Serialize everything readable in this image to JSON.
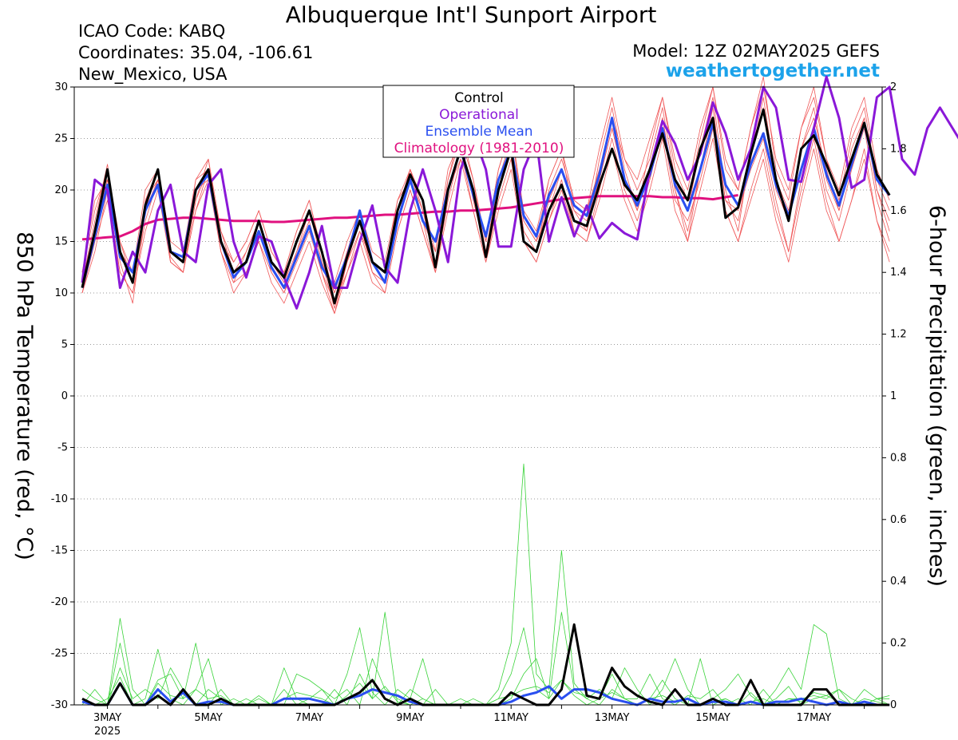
{
  "header": {
    "title": "Albuquerque Int'l Sunport Airport",
    "icao": "ICAO Code: KABQ",
    "coordinates": "Coordinates: 35.04, -106.61",
    "region": "New_Mexico, USA",
    "model": "Model: 12Z 02MAY2025 GEFS",
    "site": "weathertogether.net"
  },
  "legend": {
    "items": [
      {
        "label": "Control",
        "color": "#000000"
      },
      {
        "label": "Operational",
        "color": "#8a18d8"
      },
      {
        "label": "Ensemble Mean",
        "color": "#2a4ff0"
      },
      {
        "label": "Climatology (1981-2010)",
        "color": "#e0117f"
      }
    ]
  },
  "chart_data": {
    "type": "line",
    "ylabel_left": "850 hPa Temperature (red, °C)",
    "ylabel_right": "6-hour Precipitation (green, inches)",
    "x_start": "2025-05-02 12Z",
    "x_step_hours": 6,
    "x_ticks": [
      {
        "label": "3MAY",
        "date": "2025-05-03"
      },
      {
        "label": "5MAY",
        "date": "2025-05-05"
      },
      {
        "label": "7MAY",
        "date": "2025-05-07"
      },
      {
        "label": "9MAY",
        "date": "2025-05-09"
      },
      {
        "label": "11MAY",
        "date": "2025-05-11"
      },
      {
        "label": "13MAY",
        "date": "2025-05-13"
      },
      {
        "label": "15MAY",
        "date": "2025-05-15"
      },
      {
        "label": "17MAY",
        "date": "2025-05-17"
      }
    ],
    "x_year_label": "2025",
    "y_left": {
      "min": -30,
      "max": 30,
      "ticks": [
        -30,
        -25,
        -20,
        -15,
        -10,
        -5,
        0,
        5,
        10,
        15,
        20,
        25,
        30
      ]
    },
    "y_right": {
      "min": 0,
      "max": 2,
      "ticks": [
        "0",
        "0.2",
        "0.4",
        "0.6",
        "0.8",
        "1",
        "1.2",
        "1.4",
        "1.6",
        "1.8",
        "2"
      ]
    },
    "grid": "dotted horizontal",
    "temperature": {
      "control": [
        10.5,
        16,
        22,
        14,
        11,
        18.5,
        22,
        14,
        13,
        20,
        22,
        15,
        12,
        13,
        17,
        13,
        11.5,
        15,
        18,
        14,
        9,
        13.5,
        17,
        13,
        12,
        18,
        21.5,
        19,
        12.5,
        20,
        24,
        20,
        13.5,
        20,
        24,
        15,
        14,
        18,
        20.5,
        17,
        16.5,
        20.5,
        24,
        20.5,
        19,
        22,
        25.5,
        21,
        19,
        24,
        27,
        17.3,
        18.3,
        23.5,
        27.8,
        21,
        17,
        24,
        25.3,
        22.5,
        19.5,
        23,
        26.5,
        21.5,
        19.5
      ],
      "operational": [
        11,
        21,
        20,
        10.5,
        14,
        12,
        18,
        20.5,
        14,
        13,
        20.5,
        22,
        15,
        11.5,
        15.5,
        15,
        11.5,
        8.5,
        12,
        16.5,
        10.5,
        10.5,
        15,
        18.5,
        12.5,
        11,
        18,
        22,
        18,
        13,
        22,
        25.5,
        22,
        14.5,
        14.5,
        22,
        25,
        15,
        19.3,
        15.5,
        18.5,
        15.3,
        16.8,
        15.8,
        15.2,
        22,
        26.7,
        24.5,
        21,
        23.5,
        28.5,
        25.5,
        21,
        24,
        30,
        28,
        21,
        20.8,
        26,
        31,
        27,
        20.2,
        21,
        29,
        30,
        23,
        21.5,
        26,
        28,
        26,
        24
      ],
      "mean": [
        10.5,
        15.5,
        20.5,
        13.5,
        12,
        18,
        20.5,
        14,
        13.5,
        20,
        21.5,
        15,
        11.5,
        13,
        16,
        12.5,
        10.5,
        13.5,
        16.5,
        12.5,
        10.5,
        13.5,
        18,
        13,
        11,
        17,
        21,
        17,
        15,
        20,
        24,
        19.5,
        15.5,
        21,
        24,
        17.5,
        15.5,
        19.5,
        22,
        18.5,
        17.5,
        21.5,
        27,
        21,
        18.5,
        21.5,
        26,
        20.5,
        18,
        22,
        26.5,
        20.5,
        18.5,
        22.5,
        25.5,
        20.5,
        17.5,
        22,
        26,
        21.5,
        18.5,
        22.5,
        26.5,
        21,
        19.5
      ],
      "climatology": [
        15.2,
        15.3,
        15.4,
        15.5,
        16,
        16.7,
        17.1,
        17.2,
        17.3,
        17.3,
        17.2,
        17.1,
        17,
        17,
        17,
        16.9,
        16.9,
        17,
        17.1,
        17.2,
        17.3,
        17.3,
        17.4,
        17.5,
        17.6,
        17.6,
        17.7,
        17.8,
        17.9,
        17.9,
        18,
        18,
        18.1,
        18.2,
        18.3,
        18.5,
        18.7,
        18.9,
        19.1,
        19.2,
        19.3,
        19.4,
        19.4,
        19.4,
        19.4,
        19.4,
        19.3,
        19.3,
        19.2,
        19.2,
        19.1,
        19.3,
        19.5
      ],
      "members": [
        [
          11,
          17,
          22.5,
          14,
          12,
          18,
          21,
          13.5,
          12,
          19,
          23,
          16,
          12,
          14,
          17,
          13,
          11,
          14,
          18,
          13,
          8.5,
          13,
          17,
          12,
          11,
          17,
          22,
          18,
          13,
          21,
          25,
          19,
          14,
          20,
          25,
          16,
          14,
          19,
          22,
          18,
          17,
          21,
          26,
          21,
          19,
          22,
          27,
          20,
          16,
          22,
          28,
          19,
          17,
          23,
          29,
          21,
          18,
          24,
          27,
          22,
          18,
          23,
          27,
          20,
          17
        ],
        [
          12,
          19,
          21,
          15,
          11,
          19,
          22,
          14,
          13,
          20,
          21,
          15,
          13,
          15,
          18,
          14,
          12,
          16,
          19,
          14,
          10,
          14,
          18,
          13,
          12,
          19,
          21,
          17,
          12,
          20,
          23,
          20,
          15,
          22,
          26,
          17,
          15,
          21,
          24,
          17,
          16,
          23,
          28,
          22,
          18,
          24,
          29,
          22,
          19,
          25,
          30,
          23,
          20,
          26,
          31,
          22,
          19,
          26,
          29,
          23,
          19,
          25,
          28,
          21,
          18
        ],
        [
          10,
          14,
          20,
          12,
          10,
          17,
          21,
          13,
          12,
          18,
          22,
          14,
          11,
          12,
          15,
          12,
          10,
          13,
          16,
          12,
          9,
          12,
          16,
          12,
          10,
          16,
          20,
          16,
          12,
          19,
          24,
          18,
          13,
          19,
          23,
          15,
          13,
          17,
          21,
          16,
          15,
          20,
          25,
          20,
          17,
          21,
          26,
          19,
          17,
          21,
          26,
          18,
          15,
          20,
          24,
          18,
          14,
          20,
          25,
          19,
          15,
          19,
          23,
          17,
          13
        ],
        [
          11,
          16,
          21,
          13,
          9,
          18,
          22,
          14,
          13,
          21,
          23,
          15,
          12,
          13,
          16,
          13,
          11,
          15,
          18,
          13,
          10,
          14,
          17,
          12,
          11,
          18,
          22,
          17,
          14,
          22,
          25,
          21,
          14,
          21,
          25,
          16,
          14,
          20,
          23,
          19,
          18,
          22,
          27,
          23,
          20,
          23,
          28,
          21,
          18,
          24,
          29,
          20,
          16,
          24,
          28,
          20,
          17,
          24,
          28,
          21,
          18,
          24,
          27,
          20,
          16
        ],
        [
          10,
          15,
          22,
          14,
          11,
          19,
          21,
          13,
          12,
          19,
          22,
          14,
          11,
          14,
          17,
          12,
          10,
          14,
          17,
          12,
          8,
          13,
          16,
          13,
          12,
          18,
          21,
          18,
          13,
          20,
          24,
          20,
          14,
          21,
          24,
          17,
          15,
          18,
          22,
          18,
          16,
          21,
          26,
          21,
          18,
          22,
          27,
          20,
          15,
          22,
          27,
          19,
          18,
          22,
          25,
          19,
          14,
          21,
          26,
          20,
          17,
          22,
          26,
          19,
          15
        ],
        [
          12,
          18,
          22,
          15,
          12,
          20,
          22,
          15,
          14,
          21,
          22,
          16,
          13,
          15,
          18,
          14,
          12,
          16,
          19,
          14,
          11,
          15,
          18,
          14,
          13,
          19,
          22,
          19,
          14,
          21,
          26,
          21,
          15,
          22,
          26,
          18,
          16,
          21,
          24,
          19,
          18,
          24,
          29,
          23,
          21,
          25,
          29,
          23,
          20,
          26,
          30,
          22,
          20,
          26,
          30,
          23,
          20,
          26,
          30,
          23,
          20,
          26,
          29,
          22,
          19
        ],
        [
          10,
          15,
          19,
          12,
          10,
          16,
          20,
          13,
          12,
          18,
          21,
          14,
          10,
          12,
          15,
          11,
          9,
          12,
          15,
          11,
          8,
          12,
          15,
          11,
          10,
          16,
          20,
          16,
          12,
          18,
          23,
          18,
          13,
          18,
          22,
          15,
          13,
          17,
          20,
          16,
          15,
          19,
          24,
          19,
          16,
          20,
          25,
          18,
          15,
          20,
          25,
          18,
          15,
          19,
          23,
          17,
          13,
          19,
          24,
          18,
          15,
          19,
          24,
          17,
          14
        ]
      ]
    },
    "precipitation": {
      "control": [
        0.02,
        0,
        0,
        0.07,
        0,
        0,
        0.03,
        0,
        0.05,
        0,
        0,
        0.02,
        0,
        0,
        0,
        0,
        0,
        0,
        0,
        0,
        0,
        0.02,
        0.04,
        0.08,
        0.02,
        0,
        0.02,
        0,
        0,
        0,
        0,
        0,
        0,
        0,
        0.04,
        0.02,
        0,
        0,
        0.05,
        0.26,
        0.03,
        0.02,
        0.12,
        0.06,
        0.03,
        0.01,
        0,
        0.05,
        0,
        0,
        0.02,
        0,
        0,
        0.08,
        0,
        0,
        0,
        0,
        0.05,
        0.05,
        0,
        0,
        0,
        0,
        0
      ],
      "mean": [
        0.01,
        0,
        0,
        0.07,
        0,
        0,
        0.05,
        0.01,
        0.04,
        0,
        0.01,
        0.01,
        0,
        0,
        0,
        0,
        0.02,
        0.02,
        0.02,
        0.01,
        0,
        0.02,
        0.03,
        0.05,
        0.04,
        0.03,
        0.01,
        0,
        0,
        0,
        0,
        0,
        0,
        0,
        0.01,
        0.03,
        0.04,
        0.06,
        0.02,
        0.05,
        0.05,
        0.04,
        0.02,
        0.01,
        0,
        0.02,
        0.01,
        0.01,
        0.02,
        0,
        0.01,
        0.01,
        0,
        0.01,
        0,
        0.01,
        0.01,
        0.02,
        0.01,
        0,
        0.01,
        0,
        0.01,
        0,
        0
      ],
      "members": [
        [
          0.05,
          0.02,
          0,
          0.28,
          0.05,
          0,
          0.08,
          0.1,
          0.02,
          0.2,
          0,
          0.05,
          0,
          0,
          0.03,
          0,
          0,
          0.1,
          0.08,
          0.05,
          0,
          0.1,
          0.25,
          0.04,
          0,
          0.05,
          0.02,
          0.15,
          0,
          0,
          0.02,
          0,
          0,
          0.05,
          0.2,
          0.78,
          0.1,
          0.05,
          0.5,
          0.07,
          0.02,
          0.05,
          0.02,
          0.12,
          0.05,
          0,
          0.05,
          0.15,
          0.05,
          0,
          0.02,
          0.05,
          0.1,
          0.03,
          0,
          0.05,
          0.12,
          0.05,
          0.26,
          0.23,
          0.02,
          0,
          0.05,
          0.02,
          0
        ],
        [
          0.02,
          0,
          0,
          0.2,
          0,
          0.02,
          0.18,
          0.02,
          0,
          0.05,
          0.15,
          0,
          0.02,
          0,
          0,
          0,
          0.12,
          0.02,
          0,
          0,
          0.05,
          0,
          0.1,
          0.02,
          0.3,
          0,
          0.05,
          0.02,
          0,
          0,
          0,
          0,
          0,
          0.02,
          0.1,
          0.25,
          0.05,
          0.02,
          0.08,
          0.03,
          0,
          0.02,
          0.1,
          0.02,
          0,
          0.02,
          0.08,
          0.02,
          0,
          0.15,
          0,
          0.02,
          0,
          0.04,
          0,
          0.02,
          0.06,
          0,
          0.02,
          0.03,
          0.05,
          0.02,
          0,
          0.02,
          0.03
        ],
        [
          0,
          0.05,
          0,
          0.12,
          0.02,
          0.05,
          0.02,
          0.12,
          0.05,
          0,
          0.05,
          0.02,
          0,
          0.02,
          0,
          0,
          0.05,
          0,
          0.02,
          0.05,
          0.02,
          0.05,
          0,
          0.15,
          0.05,
          0.02,
          0,
          0,
          0.05,
          0,
          0,
          0.02,
          0,
          0,
          0.02,
          0.1,
          0.15,
          0.02,
          0.3,
          0.05,
          0.02,
          0,
          0.05,
          0.02,
          0.02,
          0.1,
          0.02,
          0,
          0.03,
          0.02,
          0.05,
          0,
          0.02,
          0,
          0.05,
          0,
          0.02,
          0.02,
          0.03,
          0.02,
          0.05,
          0,
          0,
          0.02,
          0.02
        ],
        [
          0.02,
          0,
          0.02,
          0.09,
          0,
          0,
          0.07,
          0.03,
          0.02,
          0.05,
          0.02,
          0.03,
          0,
          0,
          0.02,
          0,
          0.02,
          0.04,
          0.03,
          0.02,
          0,
          0.03,
          0.07,
          0.02,
          0.06,
          0.01,
          0,
          0.02,
          0,
          0,
          0,
          0,
          0,
          0.02,
          0.03,
          0.05,
          0.06,
          0.04,
          0.08,
          0.04,
          0.03,
          0.02,
          0.04,
          0.02,
          0,
          0.02,
          0.03,
          0.01,
          0.02,
          0,
          0.01,
          0.02,
          0,
          0.01,
          0.02,
          0,
          0.02,
          0.01,
          0.04,
          0.03,
          0.01,
          0,
          0.02,
          0.01,
          0
        ]
      ]
    }
  }
}
